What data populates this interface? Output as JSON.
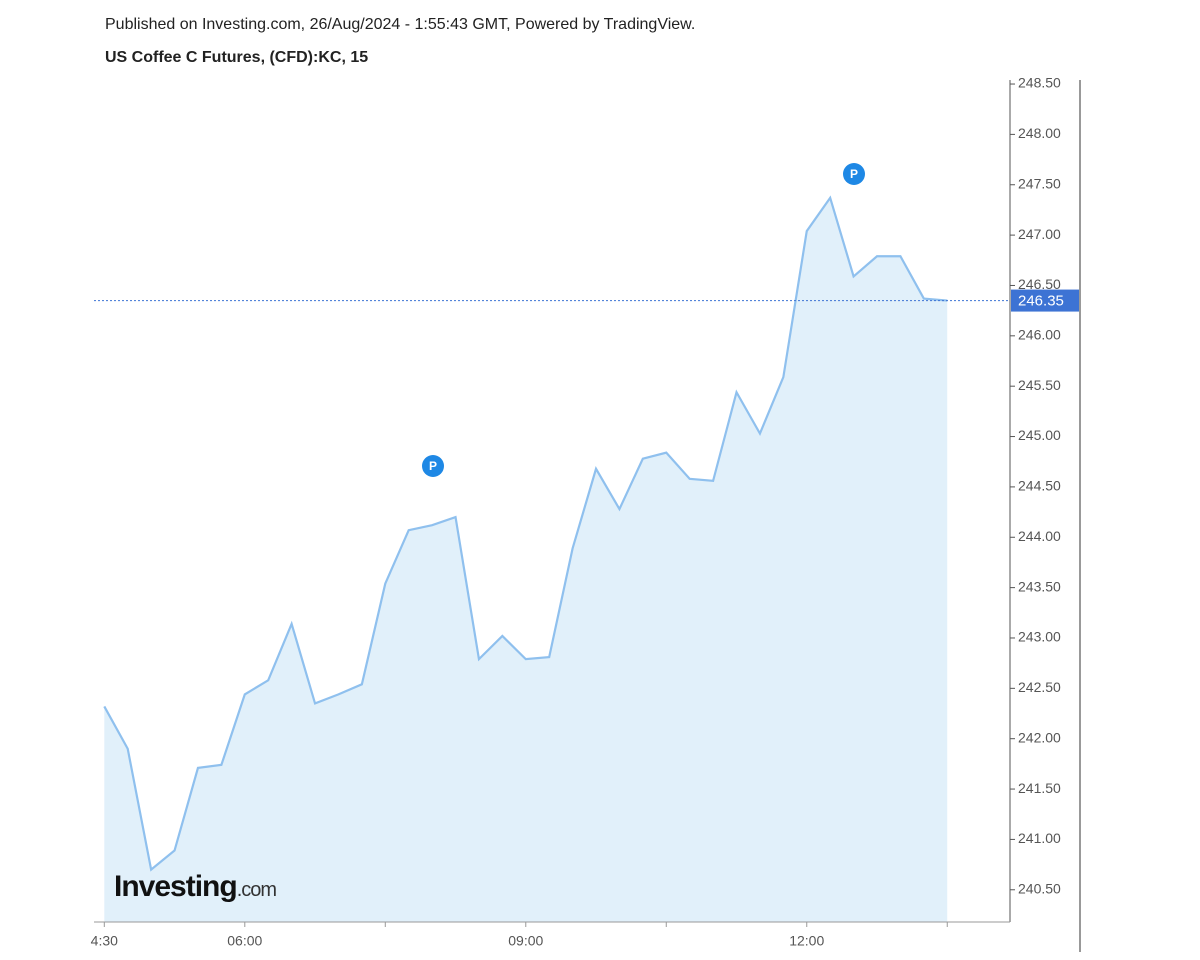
{
  "header": {
    "published": "Published on Investing.com, 26/Aug/2024 - 1:55:43 GMT, Powered by TradingView.",
    "title": "US Coffee C Futures, (CFD):KC, 15"
  },
  "chart_data": {
    "type": "area",
    "watermark": {
      "brand": "Investing",
      "suffix": ".com"
    },
    "x": [
      4.5,
      4.75,
      5,
      5.25,
      5.5,
      5.75,
      6,
      6.25,
      6.5,
      6.75,
      7,
      7.25,
      7.5,
      7.75,
      8,
      8.25,
      8.5,
      8.75,
      9,
      9.25,
      9.5,
      9.75,
      10,
      10.25,
      10.5,
      10.75,
      11,
      11.25,
      11.5,
      11.75,
      12,
      12.25,
      12.5,
      12.75,
      13,
      13.25,
      13.5
    ],
    "series": [
      {
        "color": "#8fc0ee",
        "fill": "#e1f0fa",
        "values": [
          242.32,
          241.9,
          240.7,
          240.89,
          241.71,
          241.74,
          242.44,
          242.58,
          243.14,
          242.35,
          242.44,
          242.54,
          243.54,
          244.07,
          244.12,
          244.2,
          242.79,
          243.02,
          242.79,
          242.81,
          243.89,
          244.68,
          244.28,
          244.78,
          244.84,
          244.58,
          244.56,
          245.44,
          245.03,
          245.59,
          247.04,
          247.37,
          246.59,
          246.79,
          246.79,
          246.37,
          246.35
        ]
      }
    ],
    "last_price_color": "#3d73d4",
    "xlim": [
      4.39,
      14.17
    ],
    "xticks": [
      {
        "value": 4.5,
        "label": "4:30"
      },
      {
        "value": 6,
        "label": "06:00"
      },
      {
        "value": 9,
        "label": "09:00"
      },
      {
        "value": 12,
        "label": "12:00"
      }
    ],
    "xminorticks": [
      7.5,
      10.5,
      13.5
    ],
    "ylim": [
      240.18,
      248.54
    ],
    "yticks": [
      {
        "value": 240.5,
        "label": "240.50"
      },
      {
        "value": 241,
        "label": "241.00"
      },
      {
        "value": 241.5,
        "label": "241.50"
      },
      {
        "value": 242,
        "label": "242.00"
      },
      {
        "value": 242.5,
        "label": "242.50"
      },
      {
        "value": 243,
        "label": "243.00"
      },
      {
        "value": 243.5,
        "label": "243.50"
      },
      {
        "value": 244,
        "label": "244.00"
      },
      {
        "value": 244.5,
        "label": "244.50"
      },
      {
        "value": 245,
        "label": "245.00"
      },
      {
        "value": 245.5,
        "label": "245.50"
      },
      {
        "value": 246,
        "label": "246.00"
      },
      {
        "value": 246.5,
        "label": "246.50"
      },
      {
        "value": 247,
        "label": "247.00"
      },
      {
        "value": 247.5,
        "label": "247.50"
      },
      {
        "value": 248,
        "label": "248.00"
      },
      {
        "value": 248.5,
        "label": "248.50"
      }
    ]
  }
}
